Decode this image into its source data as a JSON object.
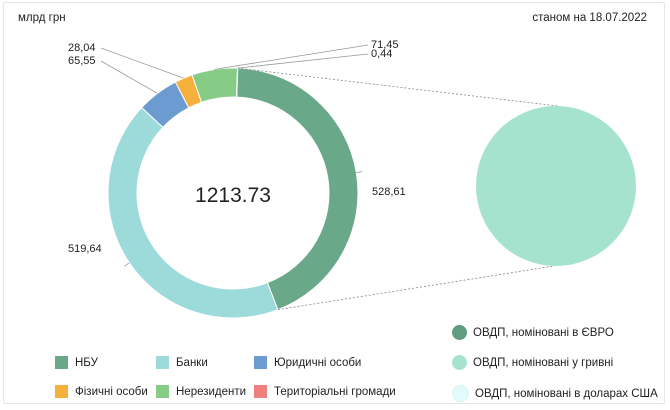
{
  "header": {
    "unit_label": "млрд грн",
    "date_label": "станом на 18.07.2022"
  },
  "chart_data": [
    {
      "type": "pie",
      "variant": "donut",
      "center_total": "1213.73",
      "unit": "млрд грн",
      "slices": [
        {
          "name": "НБУ",
          "value": 528.61,
          "label": "528,61",
          "color": "#6aa88a"
        },
        {
          "name": "Банки",
          "value": 519.64,
          "label": "519,64",
          "color": "#9ddbdb"
        },
        {
          "name": "Юридичні особи",
          "value": 65.55,
          "label": "65,55",
          "color": "#6c9bd2"
        },
        {
          "name": "Фізичні особи",
          "value": 28.04,
          "label": "28,04",
          "color": "#f6b13d"
        },
        {
          "name": "Нерезиденти",
          "value": 71.45,
          "label": "71,45",
          "color": "#86cc86"
        },
        {
          "name": "Територіальні громади",
          "value": 0.44,
          "label": "0,44",
          "color": "#f08080"
        }
      ]
    },
    {
      "type": "pie",
      "detail_of": "Нерезиденти",
      "slices": [
        {
          "name": "ОВДП, номіновані в ЄВРО",
          "value": 0,
          "color": "#6aa88a"
        },
        {
          "name": "ОВДП, номіновані у гривні",
          "value": 71.45,
          "color": "#a6e3cf"
        },
        {
          "name": "ОВДП, номіновані в доларах США",
          "value": 0,
          "color": "#e2fafb"
        }
      ]
    }
  ],
  "legend": {
    "main": [
      {
        "label": "НБУ",
        "color": "#6aa88a"
      },
      {
        "label": "Банки",
        "color": "#9ddbdb"
      },
      {
        "label": "Юридичні особи",
        "color": "#6c9bd2"
      },
      {
        "label": "Фізичні особи",
        "color": "#f6b13d"
      },
      {
        "label": "Нерезиденти",
        "color": "#86cc86"
      },
      {
        "label": "Територіальні громади",
        "color": "#f08080"
      }
    ],
    "detail": [
      {
        "label": "ОВДП, номіновані в ЄВРО",
        "color": "#5f9c80"
      },
      {
        "label": "ОВДП, номіновані у гривні",
        "color": "#a6e3cf"
      },
      {
        "label": "ОВДП, номіновані в доларах США",
        "color": "#e2fafb"
      }
    ]
  }
}
